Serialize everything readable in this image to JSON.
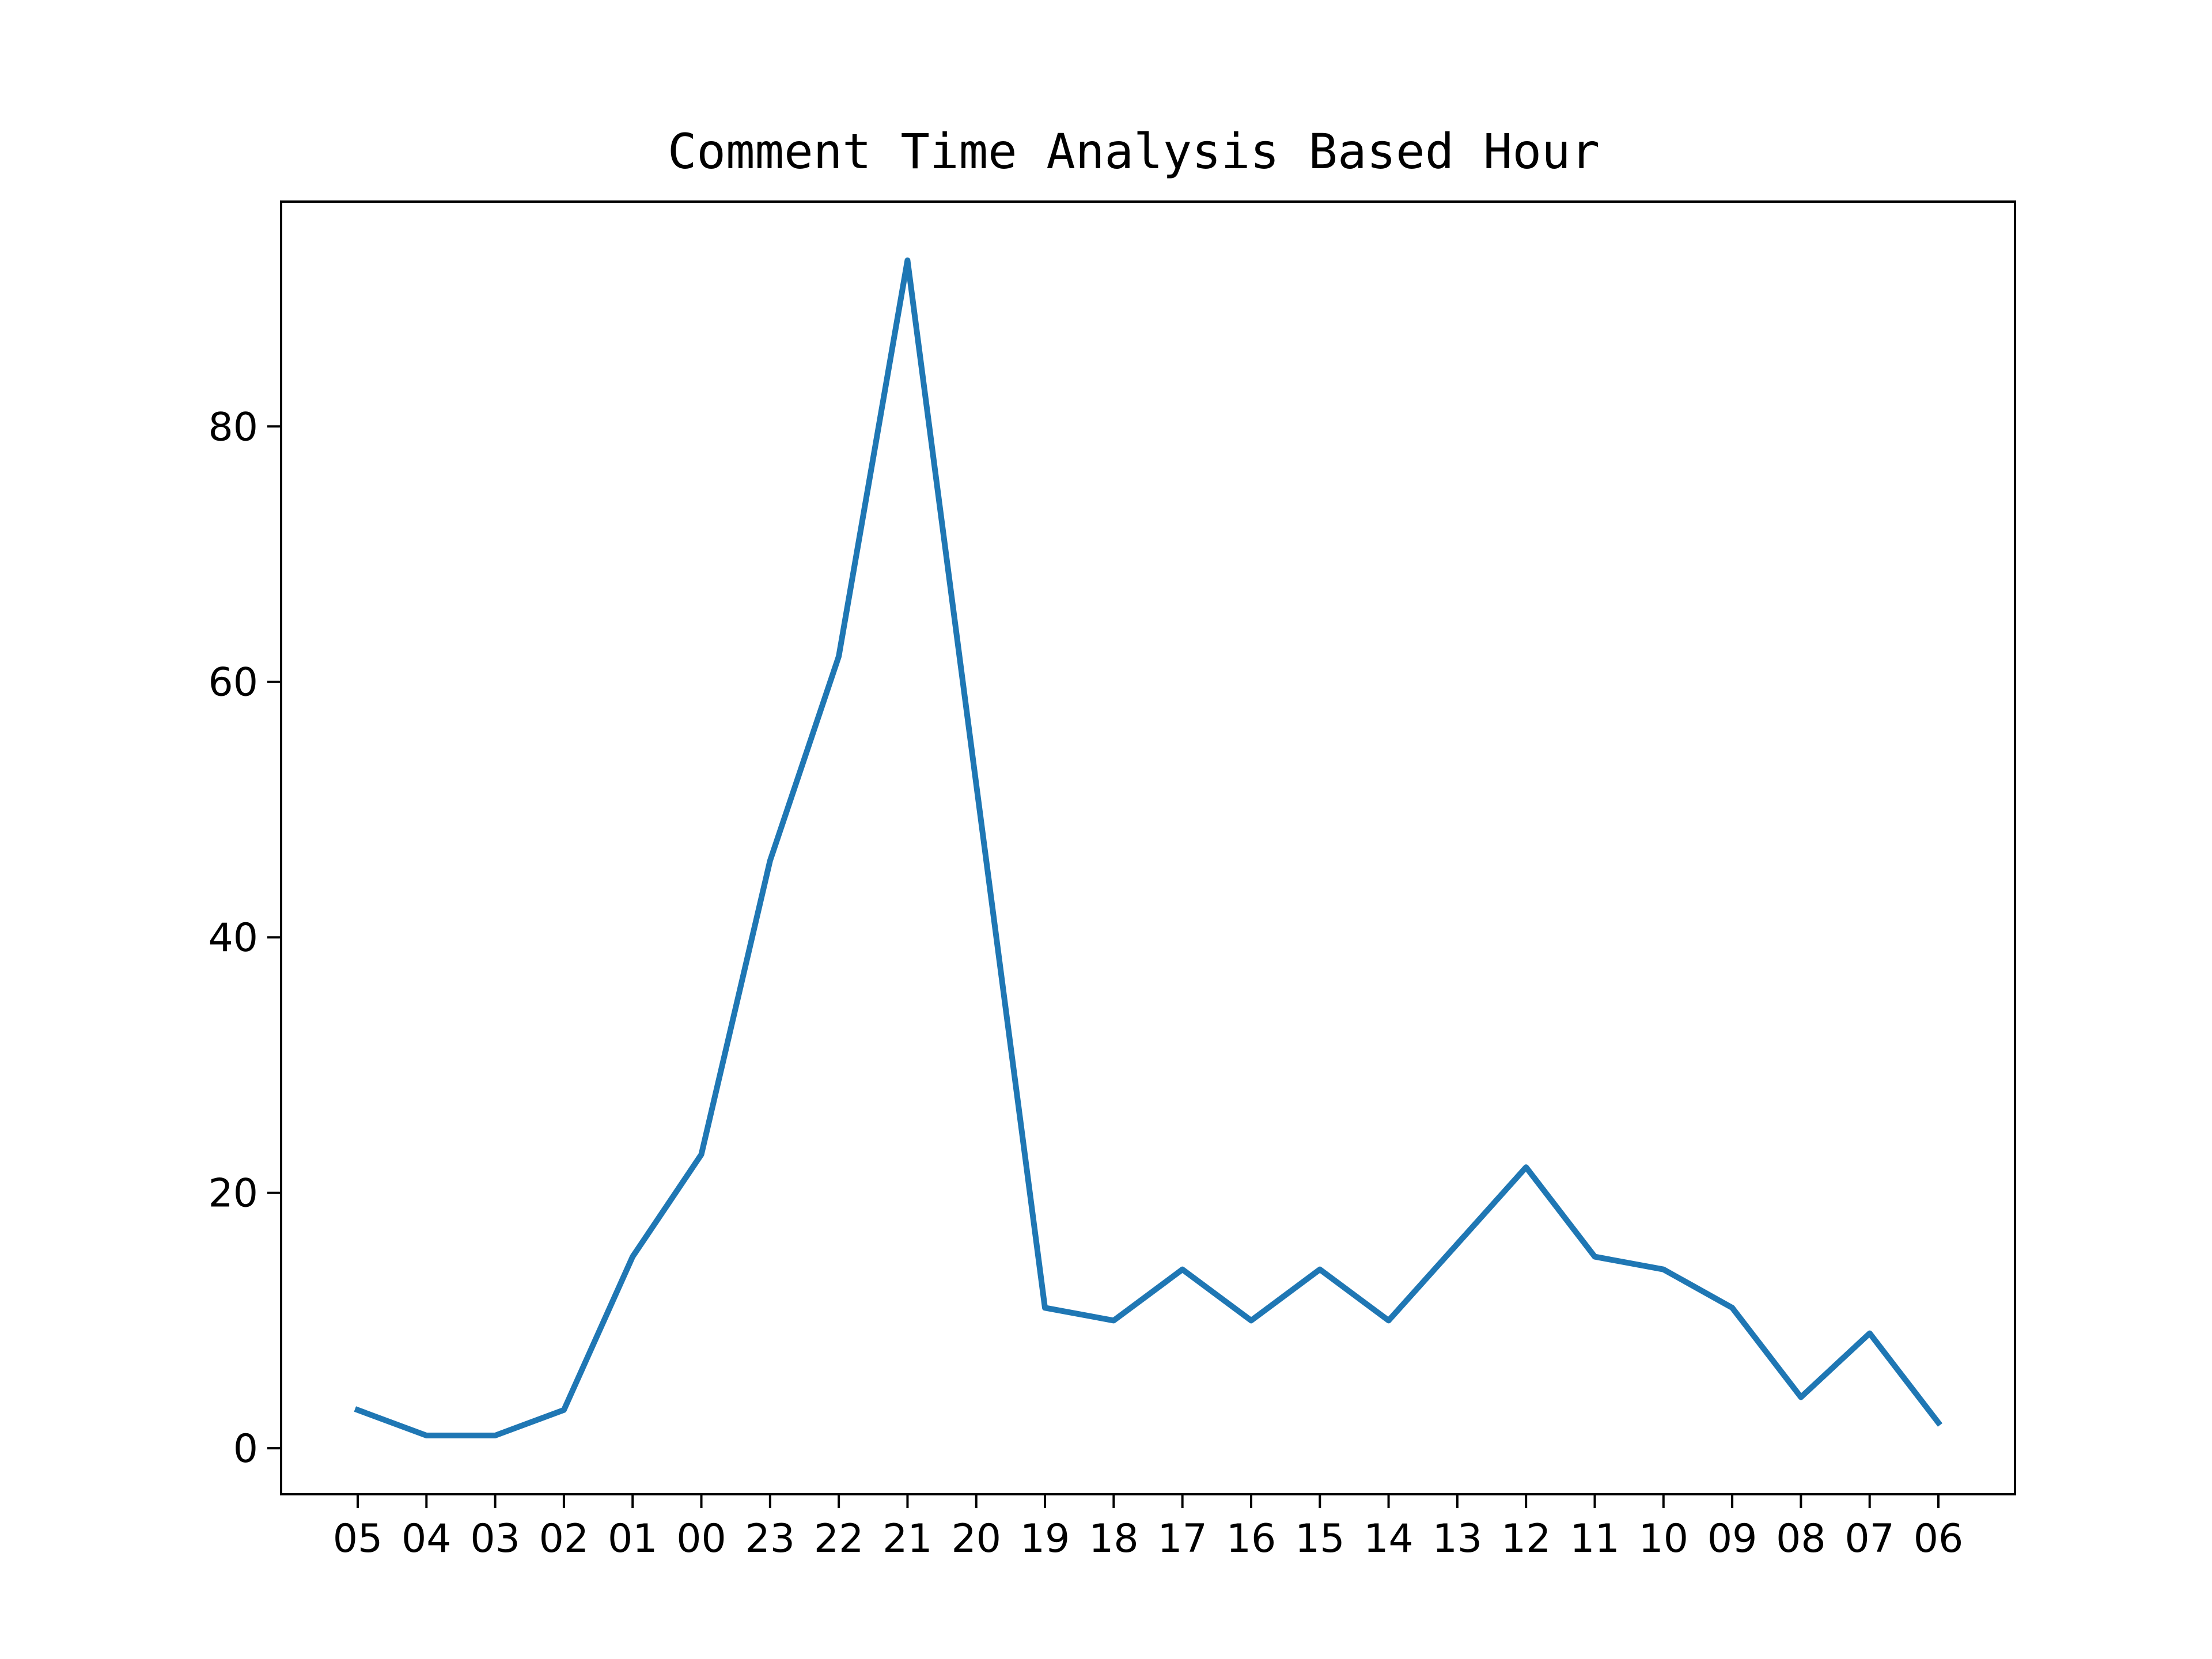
{
  "chart_data": {
    "type": "line",
    "title": "Comment Time Analysis Based Hour",
    "xlabel": "",
    "ylabel": "",
    "categories": [
      "05",
      "04",
      "03",
      "02",
      "01",
      "00",
      "23",
      "22",
      "21",
      "20",
      "19",
      "18",
      "17",
      "16",
      "15",
      "14",
      "13",
      "12",
      "11",
      "10",
      "09",
      "08",
      "07",
      "06"
    ],
    "series": [
      {
        "values": [
          3,
          1,
          1,
          3,
          15,
          23,
          46,
          62,
          93,
          52,
          11,
          10,
          14,
          10,
          14,
          10,
          16,
          22,
          15,
          14,
          11,
          4,
          9,
          2
        ]
      }
    ],
    "y_ticks": [
      0,
      20,
      40,
      60,
      80
    ],
    "y_tick_labels": [
      "0",
      "20",
      "40",
      "60",
      "80"
    ],
    "ylim": [
      -3.6,
      97.6
    ],
    "grid": false,
    "legend": "none",
    "line_color": "#1f77b4",
    "axis_color": "#000000"
  }
}
